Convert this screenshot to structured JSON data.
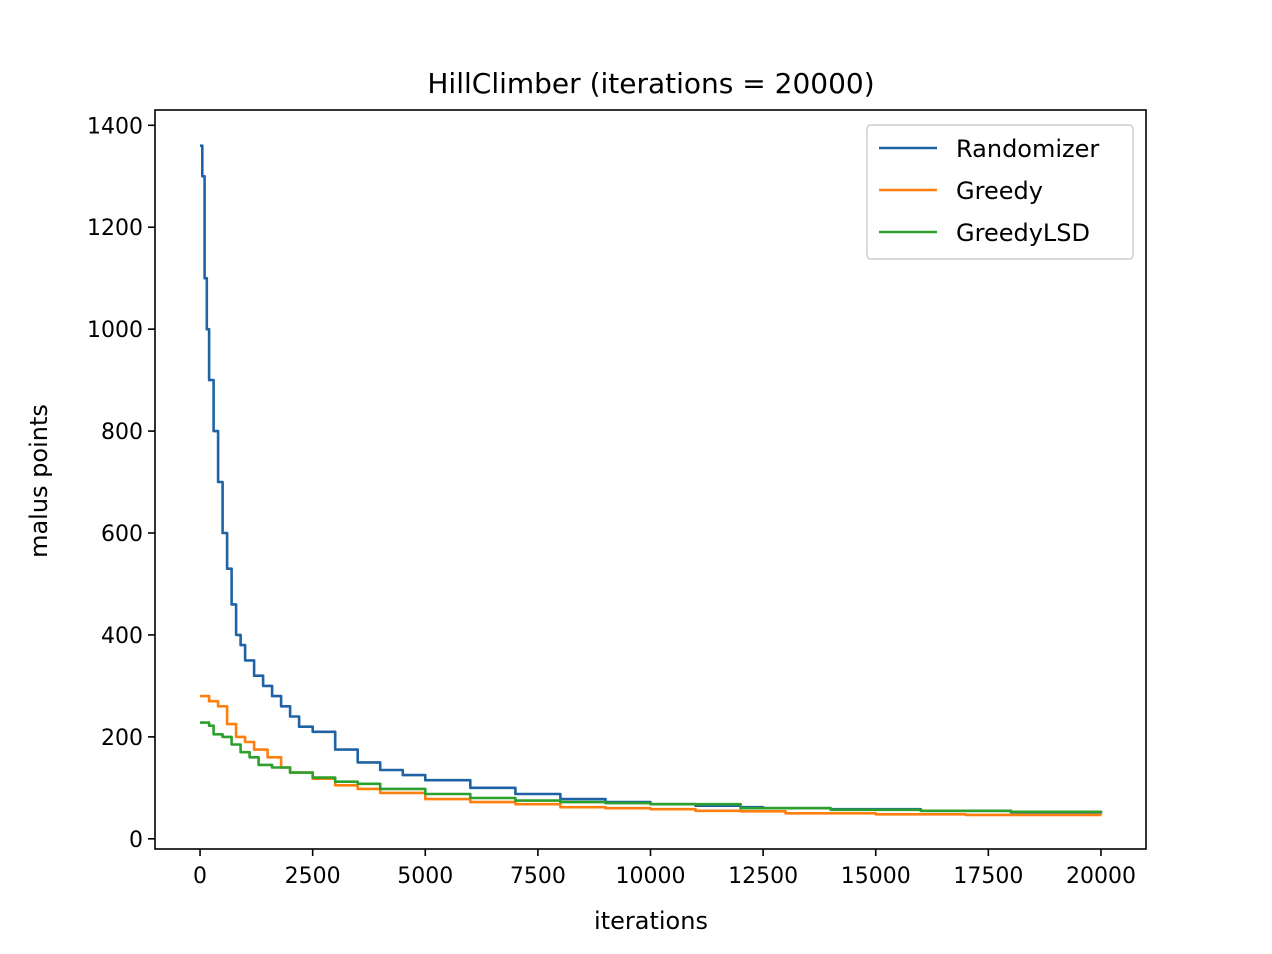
{
  "chart_data": {
    "type": "line",
    "title": "HillClimber (iterations = 20000)",
    "xlabel": "iterations",
    "ylabel": "malus points",
    "xlim": [
      -1000,
      21000
    ],
    "ylim": [
      -20,
      1430
    ],
    "xticks": [
      0,
      2500,
      5000,
      7500,
      10000,
      12500,
      15000,
      17500,
      20000
    ],
    "xtick_labels": [
      "0",
      "2500",
      "5000",
      "7500",
      "10000",
      "12500",
      "15000",
      "17500",
      "20000"
    ],
    "yticks": [
      0,
      200,
      400,
      600,
      800,
      1000,
      1200,
      1400
    ],
    "ytick_labels": [
      "0",
      "200",
      "400",
      "600",
      "800",
      "1000",
      "1200",
      "1400"
    ],
    "grid": false,
    "legend_position": "top-right",
    "series": [
      {
        "name": "Randomizer",
        "color": "#1f63a5",
        "x": [
          0,
          50,
          100,
          150,
          200,
          300,
          400,
          500,
          600,
          700,
          800,
          900,
          1000,
          1200,
          1400,
          1600,
          1800,
          2000,
          2200,
          2500,
          3000,
          3500,
          4000,
          4500,
          5000,
          6000,
          7000,
          8000,
          9000,
          10000,
          11000,
          12000,
          12500,
          14000,
          16000,
          18000,
          20000
        ],
        "y": [
          1360,
          1300,
          1100,
          1000,
          900,
          800,
          700,
          600,
          530,
          460,
          400,
          380,
          350,
          320,
          300,
          280,
          260,
          240,
          220,
          210,
          175,
          150,
          135,
          125,
          115,
          100,
          88,
          78,
          72,
          68,
          65,
          62,
          60,
          58,
          55,
          52,
          50
        ]
      },
      {
        "name": "Greedy",
        "color": "#ff7f0e",
        "x": [
          0,
          200,
          400,
          600,
          800,
          1000,
          1200,
          1500,
          1800,
          2000,
          2500,
          3000,
          3500,
          4000,
          5000,
          6000,
          7000,
          8000,
          9000,
          10000,
          11000,
          12000,
          13000,
          15000,
          17000,
          20000
        ],
        "y": [
          280,
          270,
          260,
          225,
          200,
          190,
          175,
          160,
          140,
          130,
          118,
          105,
          98,
          90,
          78,
          72,
          68,
          62,
          60,
          58,
          55,
          54,
          50,
          48,
          47,
          46
        ]
      },
      {
        "name": "GreedyLSD",
        "color": "#2ca02c",
        "x": [
          0,
          200,
          300,
          500,
          700,
          900,
          1100,
          1300,
          1600,
          2000,
          2500,
          3000,
          3500,
          4000,
          5000,
          6000,
          7000,
          8000,
          9000,
          10000,
          12000,
          14000,
          16000,
          18000,
          20000
        ],
        "y": [
          228,
          222,
          205,
          200,
          185,
          170,
          160,
          145,
          140,
          130,
          120,
          112,
          108,
          98,
          88,
          80,
          75,
          72,
          70,
          68,
          60,
          57,
          55,
          53,
          50
        ]
      }
    ]
  }
}
